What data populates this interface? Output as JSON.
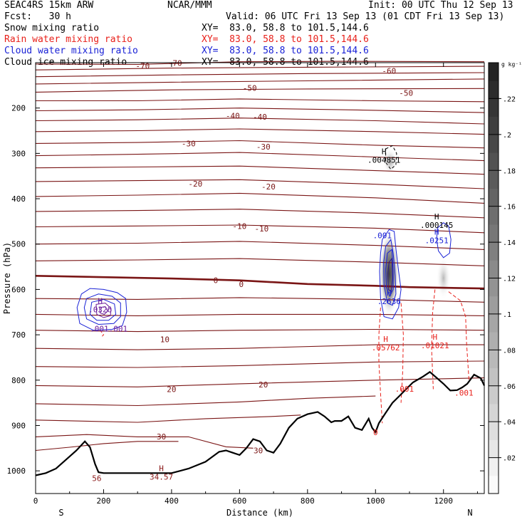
{
  "header": {
    "model": "SEAC4RS 15km ARW",
    "org": "NCAR/MMM",
    "init": "Init: 00 UTC Thu 12 Sep 13",
    "fcst": "Fcst:   30 h",
    "valid": "Valid: 06 UTC Fri 13 Sep 13 (01 CDT Fri 13 Sep 13)",
    "fields": [
      {
        "label": "Snow mixing ratio",
        "xy": "XY=  83.0, 58.8 to 101.5,144.6",
        "color": "#000000"
      },
      {
        "label": "Rain water mixing ratio",
        "xy": "XY=  83.0, 58.8 to 101.5,144.6",
        "color": "#e8201a"
      },
      {
        "label": "Cloud water mixing ratio",
        "xy": "XY=  83.0, 58.8 to 101.5,144.6",
        "color": "#1a22d6"
      },
      {
        "label": "Cloud ice mixing ratio",
        "xy": "XY=  83.0, 58.8 to 101.5,144.6",
        "color": "#000000"
      }
    ]
  },
  "chart_data": {
    "type": "contour",
    "xlabel": "Distance (km)",
    "ylabel": "Pressure (hPa)",
    "xlim": [
      0,
      1320
    ],
    "ylim": [
      1050,
      100
    ],
    "x_ticks": [
      0,
      200,
      400,
      600,
      800,
      1000,
      1200
    ],
    "y_ticks": [
      200,
      300,
      400,
      500,
      600,
      700,
      800,
      900,
      1000
    ],
    "left_end": "S",
    "right_end": "N",
    "colorbar": {
      "unit": "g kg⁻¹",
      "ticks": [
        ".02",
        ".04",
        ".06",
        ".08",
        ".1",
        ".12",
        ".14",
        ".16",
        ".18",
        ".2",
        ".22"
      ],
      "vmin": 0,
      "vmax": 0.24
    },
    "temperature_levels": [
      {
        "value": 30,
        "label": "30",
        "labels_at": [
          [
            370,
            924
          ],
          [
            655,
            955
          ]
        ]
      },
      {
        "value": 20,
        "label": "20",
        "labels_at": [
          [
            400,
            820
          ],
          [
            670,
            810
          ]
        ]
      },
      {
        "value": 10,
        "label": "10",
        "labels_at": [
          [
            380,
            710
          ]
        ]
      },
      {
        "value": 0,
        "label": "0",
        "labels_at": [
          [
            530,
            580
          ],
          [
            605,
            588
          ]
        ]
      },
      {
        "value": -10,
        "label": "-10",
        "labels_at": [
          [
            600,
            460
          ],
          [
            665,
            466
          ]
        ]
      },
      {
        "value": -20,
        "label": "-20",
        "labels_at": [
          [
            470,
            367
          ],
          [
            685,
            373
          ]
        ]
      },
      {
        "value": -30,
        "label": "-30",
        "labels_at": [
          [
            450,
            278
          ],
          [
            670,
            285
          ]
        ]
      },
      {
        "value": -40,
        "label": "-40",
        "labels_at": [
          [
            580,
            217
          ],
          [
            660,
            219
          ]
        ]
      },
      {
        "value": -50,
        "label": "-50",
        "labels_at": [
          [
            630,
            156
          ],
          [
            1090,
            167
          ]
        ]
      },
      {
        "value": -60,
        "label": "-60",
        "labels_at": [
          [
            1040,
            118
          ]
        ]
      },
      {
        "value": -70,
        "label": "-70",
        "labels_at": [
          [
            315,
            107
          ],
          [
            410,
            101
          ]
        ]
      }
    ],
    "extrema_labels": [
      {
        "x": 180,
        "p": 1013,
        "text": "56",
        "color": "#8b1a1a"
      },
      {
        "x": 370,
        "p": 1010,
        "text": "34.57",
        "color": "#8b1a1a",
        "marker": "H"
      },
      {
        "x": 190,
        "p": 641,
        "text": ".0326",
        "color": "#6a1a9a",
        "marker": "H"
      },
      {
        "x": 215,
        "p": 683,
        "text": ".001.001",
        "color": "#6a1a9a"
      },
      {
        "x": 1025,
        "p": 311,
        "text": ".004851",
        "color": "#000000",
        "marker": "H"
      },
      {
        "x": 1020,
        "p": 478,
        "text": ".001",
        "color": "#1a22d6"
      },
      {
        "x": 1040,
        "p": 623,
        "text": ".2636",
        "color": "#1a22d6",
        "marker": "H"
      },
      {
        "x": 1030,
        "p": 725,
        "text": ".05762",
        "color": "#e8201a",
        "marker": "H"
      },
      {
        "x": 1085,
        "p": 816,
        "text": ".001",
        "color": "#e8201a"
      },
      {
        "x": 1180,
        "p": 455,
        "text": ".000145",
        "color": "#000000",
        "marker": "H"
      },
      {
        "x": 1180,
        "p": 489,
        "text": ".0251",
        "color": "#1a22d6",
        "marker": "H"
      },
      {
        "x": 1175,
        "p": 720,
        "text": ".01021",
        "color": "#e8201a",
        "marker": "H"
      },
      {
        "x": 1260,
        "p": 825,
        "text": ".001",
        "color": "#e8201a"
      },
      {
        "x": 1000,
        "p": 912,
        "text": "0",
        "color": "#e8201a"
      }
    ],
    "terrain_pressure": [
      [
        0,
        1010
      ],
      [
        30,
        1005
      ],
      [
        60,
        995
      ],
      [
        90,
        975
      ],
      [
        120,
        955
      ],
      [
        145,
        935
      ],
      [
        160,
        948
      ],
      [
        175,
        985
      ],
      [
        185,
        1003
      ],
      [
        200,
        1005
      ],
      [
        300,
        1005
      ],
      [
        400,
        1005
      ],
      [
        450,
        995
      ],
      [
        500,
        980
      ],
      [
        540,
        958
      ],
      [
        560,
        955
      ],
      [
        580,
        960
      ],
      [
        600,
        965
      ],
      [
        620,
        950
      ],
      [
        640,
        930
      ],
      [
        660,
        935
      ],
      [
        680,
        955
      ],
      [
        700,
        960
      ],
      [
        720,
        940
      ],
      [
        745,
        905
      ],
      [
        770,
        885
      ],
      [
        800,
        875
      ],
      [
        830,
        870
      ],
      [
        850,
        880
      ],
      [
        870,
        893
      ],
      [
        880,
        890
      ],
      [
        900,
        890
      ],
      [
        920,
        880
      ],
      [
        940,
        905
      ],
      [
        960,
        910
      ],
      [
        980,
        885
      ],
      [
        990,
        905
      ],
      [
        1000,
        915
      ],
      [
        1010,
        895
      ],
      [
        1030,
        872
      ],
      [
        1050,
        850
      ],
      [
        1070,
        835
      ],
      [
        1090,
        820
      ],
      [
        1110,
        805
      ],
      [
        1140,
        792
      ],
      [
        1160,
        782
      ],
      [
        1180,
        795
      ],
      [
        1200,
        808
      ],
      [
        1220,
        823
      ],
      [
        1240,
        822
      ],
      [
        1255,
        816
      ],
      [
        1270,
        808
      ],
      [
        1290,
        788
      ],
      [
        1310,
        796
      ],
      [
        1320,
        812
      ]
    ]
  }
}
